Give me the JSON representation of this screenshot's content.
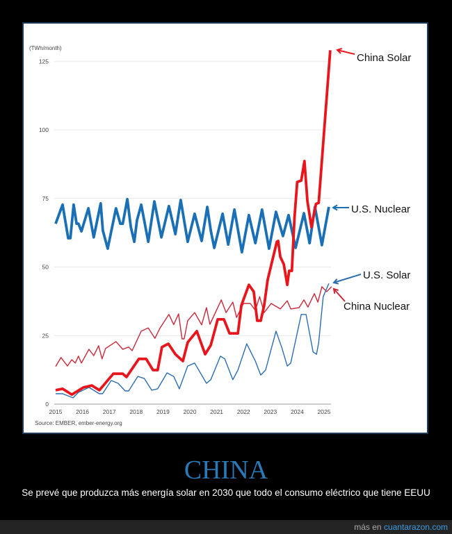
{
  "caption": {
    "title": "CHINA",
    "subtitle": "Se prevé que produzca más energía solar en 2030 que todo el consumo eléctrico que tiene EEUU"
  },
  "footer": {
    "prefix": "más en ",
    "site": "cuantarazon.com"
  },
  "chart_data": {
    "type": "line",
    "unit_label": "(TWh/month)",
    "source": "Source: EMBER, ember-energy.org",
    "xlim": [
      2015,
      2025.3
    ],
    "ylim": [
      0,
      130
    ],
    "xticks": [
      "2015",
      "2016",
      "2017",
      "2018",
      "2019",
      "2020",
      "2021",
      "2022",
      "2023",
      "2024",
      "2025"
    ],
    "yticks": [
      "0",
      "25",
      "50",
      "75",
      "100",
      "125"
    ],
    "grid": "horizontal",
    "legend": "direct labels at right",
    "series": [
      {
        "name": "China Solar",
        "color": "#e8161c",
        "weight": "thick",
        "points": [
          [
            2015,
            5.1
          ],
          [
            2015.26,
            5.6
          ],
          [
            2015.6,
            3.5
          ],
          [
            2016.04,
            6.1
          ],
          [
            2016.35,
            6.8
          ],
          [
            2016.63,
            5.1
          ],
          [
            2017.15,
            11.1
          ],
          [
            2017.5,
            11.1
          ],
          [
            2017.64,
            9.9
          ],
          [
            2018.1,
            16.5
          ],
          [
            2018.37,
            16.5
          ],
          [
            2018.63,
            12.4
          ],
          [
            2018.8,
            12.4
          ],
          [
            2018.96,
            20.8
          ],
          [
            2019.2,
            22
          ],
          [
            2019.46,
            18.2
          ],
          [
            2019.74,
            15.7
          ],
          [
            2019.92,
            22.5
          ],
          [
            2020.26,
            26.6
          ],
          [
            2020.57,
            18.2
          ],
          [
            2020.78,
            21.5
          ],
          [
            2021.04,
            30.9
          ],
          [
            2021.27,
            30.9
          ],
          [
            2021.48,
            25.8
          ],
          [
            2021.79,
            25.8
          ],
          [
            2021.92,
            36
          ],
          [
            2022.2,
            43.5
          ],
          [
            2022.38,
            41
          ],
          [
            2022.51,
            30.4
          ],
          [
            2022.64,
            30.4
          ],
          [
            2022.77,
            36
          ],
          [
            2022.9,
            45.3
          ],
          [
            2023.24,
            59.2
          ],
          [
            2023.29,
            59.5
          ],
          [
            2023.37,
            53.7
          ],
          [
            2023.5,
            51
          ],
          [
            2023.63,
            43.5
          ],
          [
            2023.7,
            48.6
          ],
          [
            2023.8,
            48.6
          ],
          [
            2023.9,
            68
          ],
          [
            2024.0,
            81
          ],
          [
            2024.15,
            81.5
          ],
          [
            2024.27,
            88.6
          ],
          [
            2024.38,
            74
          ],
          [
            2024.53,
            64.5
          ],
          [
            2024.7,
            73
          ],
          [
            2024.8,
            73.4
          ],
          [
            2025.23,
            129
          ]
        ]
      },
      {
        "name": "U.S. Nuclear",
        "color": "#1a6fb5",
        "weight": "thick",
        "points": [
          [
            2015,
            65.8
          ],
          [
            2015.26,
            72.7
          ],
          [
            2015.47,
            60.5
          ],
          [
            2015.55,
            60.5
          ],
          [
            2015.67,
            72.7
          ],
          [
            2015.78,
            65.8
          ],
          [
            2015.85,
            65.8
          ],
          [
            2015.96,
            63
          ],
          [
            2016.22,
            71.4
          ],
          [
            2016.42,
            60.8
          ],
          [
            2016.68,
            73.2
          ],
          [
            2016.76,
            63.3
          ],
          [
            2016.94,
            56.7
          ],
          [
            2017.25,
            71.4
          ],
          [
            2017.41,
            65.8
          ],
          [
            2017.5,
            65.8
          ],
          [
            2017.67,
            74.7
          ],
          [
            2017.8,
            64.6
          ],
          [
            2017.93,
            59.2
          ],
          [
            2018.03,
            67
          ],
          [
            2018.19,
            72.7
          ],
          [
            2018.45,
            59.2
          ],
          [
            2018.68,
            73.9
          ],
          [
            2018.94,
            60.8
          ],
          [
            2019.22,
            72.2
          ],
          [
            2019.46,
            62
          ],
          [
            2019.66,
            74.4
          ],
          [
            2019.92,
            59.2
          ],
          [
            2020.18,
            69.4
          ],
          [
            2020.44,
            59.5
          ],
          [
            2020.65,
            71.9
          ],
          [
            2020.78,
            63.3
          ],
          [
            2020.91,
            57
          ],
          [
            2021.22,
            69.4
          ],
          [
            2021.43,
            58.2
          ],
          [
            2021.66,
            70.9
          ],
          [
            2021.94,
            55.4
          ],
          [
            2022.2,
            68.9
          ],
          [
            2022.44,
            58.7
          ],
          [
            2022.69,
            70.9
          ],
          [
            2022.95,
            56.7
          ],
          [
            2023.21,
            70.1
          ],
          [
            2023.47,
            61.3
          ],
          [
            2023.68,
            68.9
          ],
          [
            2023.94,
            57
          ],
          [
            2024.25,
            69.6
          ],
          [
            2024.46,
            58.7
          ],
          [
            2024.66,
            71.9
          ],
          [
            2024.92,
            58
          ],
          [
            2025.18,
            71.9
          ]
        ]
      },
      {
        "name": "U.S. Solar",
        "color": "#2a6db2",
        "weight": "thin",
        "points": [
          [
            2015,
            3.8
          ],
          [
            2015.26,
            3.8
          ],
          [
            2015.65,
            2.3
          ],
          [
            2015.85,
            4.3
          ],
          [
            2016.24,
            6.1
          ],
          [
            2016.63,
            3.8
          ],
          [
            2016.75,
            3.8
          ],
          [
            2017.07,
            8.6
          ],
          [
            2017.33,
            7.6
          ],
          [
            2017.59,
            4.8
          ],
          [
            2017.72,
            4.8
          ],
          [
            2018.06,
            10.1
          ],
          [
            2018.3,
            9.4
          ],
          [
            2018.58,
            5.1
          ],
          [
            2018.8,
            5.6
          ],
          [
            2019.15,
            11.4
          ],
          [
            2019.4,
            10.1
          ],
          [
            2019.61,
            5.6
          ],
          [
            2019.92,
            13.9
          ],
          [
            2020.18,
            15
          ],
          [
            2020.62,
            7.6
          ],
          [
            2020.78,
            8.9
          ],
          [
            2021.14,
            17.5
          ],
          [
            2021.3,
            16.5
          ],
          [
            2021.6,
            8.9
          ],
          [
            2021.79,
            12.4
          ],
          [
            2022.12,
            22
          ],
          [
            2022.44,
            15.7
          ],
          [
            2022.64,
            10.6
          ],
          [
            2022.82,
            12.4
          ],
          [
            2023.21,
            26.6
          ],
          [
            2023.42,
            20.8
          ],
          [
            2023.63,
            13.9
          ],
          [
            2023.76,
            15
          ],
          [
            2024.15,
            32.7
          ],
          [
            2024.33,
            32.7
          ],
          [
            2024.46,
            25.8
          ],
          [
            2024.59,
            19
          ],
          [
            2024.72,
            18.2
          ],
          [
            2024.8,
            22.5
          ],
          [
            2024.97,
            39.2
          ],
          [
            2025.18,
            44
          ]
        ]
      },
      {
        "name": "China Nuclear",
        "color": "#c8283a",
        "weight": "thin",
        "points": [
          [
            2015,
            13.7
          ],
          [
            2015.2,
            17
          ],
          [
            2015.44,
            13.9
          ],
          [
            2015.6,
            16.2
          ],
          [
            2015.73,
            15
          ],
          [
            2015.85,
            17.5
          ],
          [
            2015.96,
            15
          ],
          [
            2016.24,
            20
          ],
          [
            2016.42,
            17.7
          ],
          [
            2016.6,
            21.3
          ],
          [
            2016.73,
            16.5
          ],
          [
            2016.86,
            20.3
          ],
          [
            2017.25,
            22.8
          ],
          [
            2017.5,
            20
          ],
          [
            2017.72,
            20.8
          ],
          [
            2017.85,
            19.5
          ],
          [
            2018.03,
            23.3
          ],
          [
            2018.19,
            26.6
          ],
          [
            2018.45,
            27.8
          ],
          [
            2018.7,
            24
          ],
          [
            2018.89,
            27.8
          ],
          [
            2019.22,
            32.7
          ],
          [
            2019.4,
            29
          ],
          [
            2019.58,
            32.9
          ],
          [
            2019.71,
            23.8
          ],
          [
            2019.79,
            23.8
          ],
          [
            2019.92,
            30.4
          ],
          [
            2020.18,
            33.4
          ],
          [
            2020.44,
            28.9
          ],
          [
            2020.62,
            35.2
          ],
          [
            2020.75,
            29.1
          ],
          [
            2021.17,
            38
          ],
          [
            2021.35,
            33.4
          ],
          [
            2021.6,
            37.2
          ],
          [
            2021.74,
            31.6
          ],
          [
            2022.0,
            36.7
          ],
          [
            2022.25,
            36.7
          ],
          [
            2022.44,
            34.2
          ],
          [
            2022.6,
            39.2
          ],
          [
            2022.77,
            33.4
          ],
          [
            2023.03,
            36.7
          ],
          [
            2023.37,
            34.7
          ],
          [
            2023.63,
            37.7
          ],
          [
            2023.76,
            34.7
          ],
          [
            2024.07,
            35.2
          ],
          [
            2024.25,
            38
          ],
          [
            2024.4,
            35.4
          ],
          [
            2024.64,
            40.3
          ],
          [
            2024.77,
            37.2
          ],
          [
            2024.92,
            42.8
          ],
          [
            2025.1,
            41
          ],
          [
            2025.28,
            42.8
          ]
        ]
      }
    ]
  }
}
